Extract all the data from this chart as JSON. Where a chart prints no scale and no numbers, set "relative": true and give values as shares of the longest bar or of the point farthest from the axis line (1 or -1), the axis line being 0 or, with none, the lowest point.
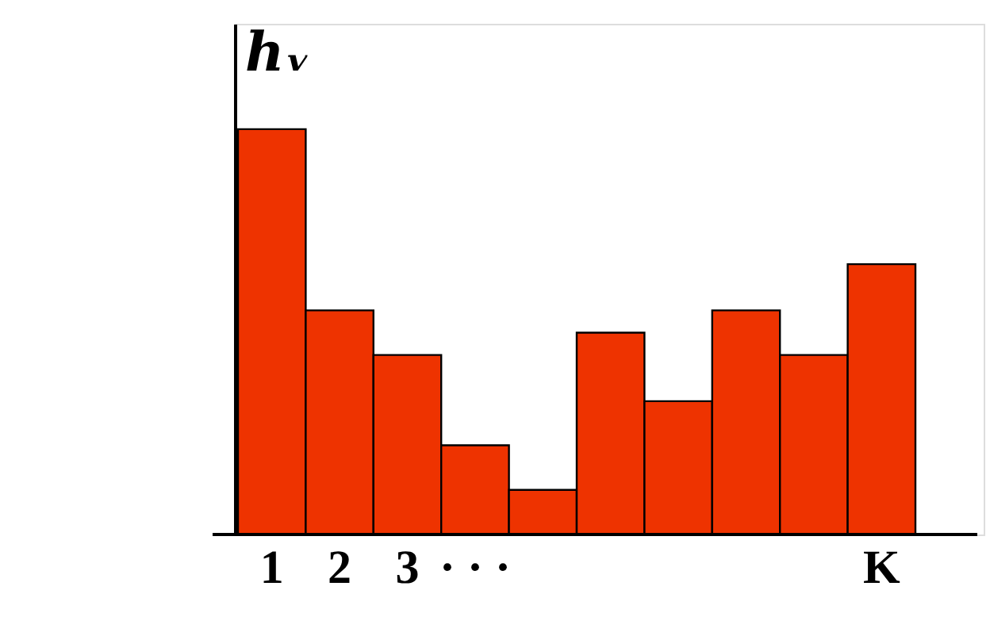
{
  "chart_data": {
    "type": "bar",
    "relative": true,
    "ylabel": "hᵥ",
    "color": "#ee3300",
    "categories": [
      "1",
      "2",
      "3",
      "· · ·",
      null,
      null,
      null,
      null,
      null,
      "K"
    ],
    "values": [
      1,
      0.553,
      0.443,
      0.22,
      0.11,
      0.498,
      0.329,
      0.553,
      0.443,
      0.667
    ],
    "grid": false
  }
}
